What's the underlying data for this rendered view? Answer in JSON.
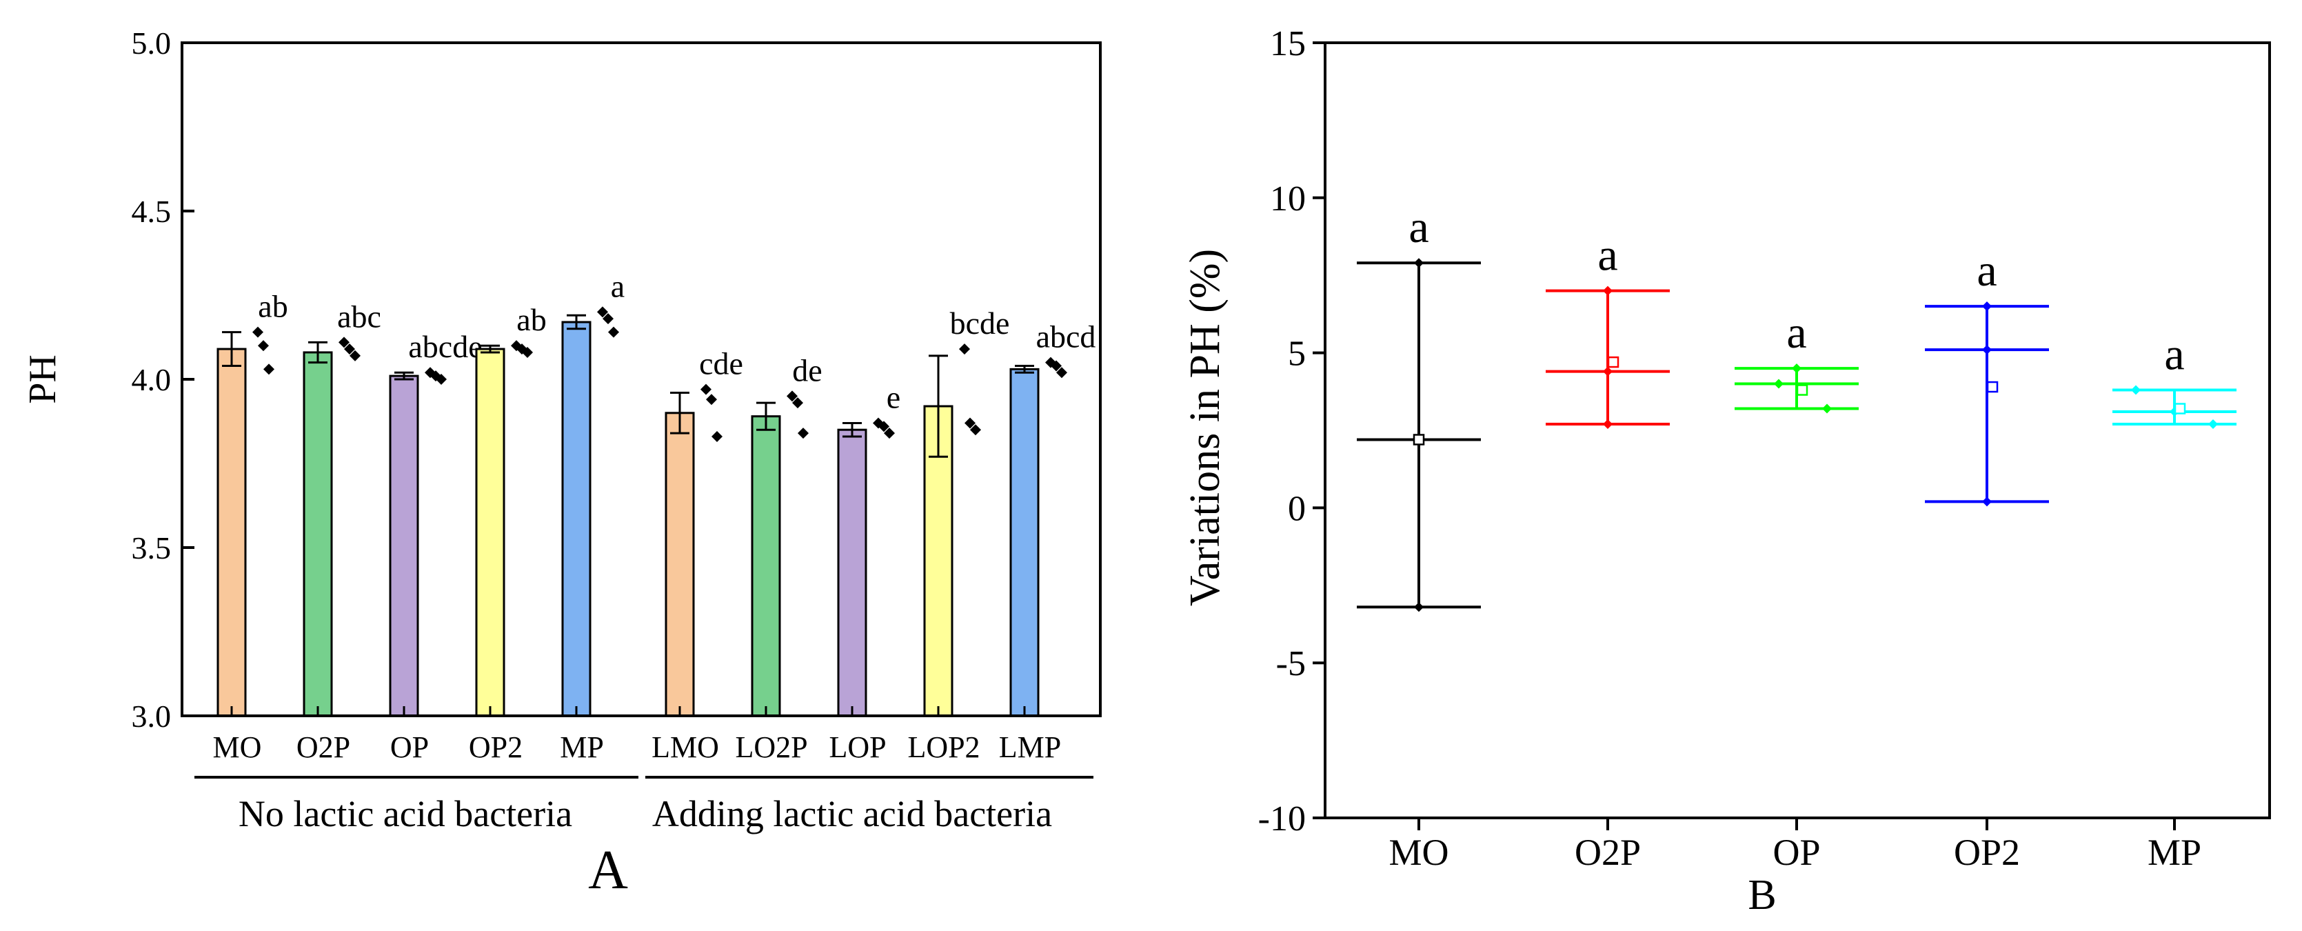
{
  "chart_data": [
    {
      "panel_label": "A",
      "type": "bar",
      "ylabel": "PH",
      "ylim": [
        3.0,
        5.0
      ],
      "yticks": [
        "3.0",
        "3.5",
        "4.0",
        "4.5",
        "5.0"
      ],
      "groups": [
        {
          "label": "No lactic acid bacteria",
          "bars": [
            {
              "category": "MO",
              "value": 4.09,
              "error": 0.05,
              "letter": "ab",
              "color": "#F9C89B",
              "points": [
                4.14,
                4.1,
                4.03
              ]
            },
            {
              "category": "O2P",
              "value": 4.08,
              "error": 0.03,
              "letter": "abc",
              "color": "#76D08D",
              "points": [
                4.11,
                4.09,
                4.07
              ]
            },
            {
              "category": "OP",
              "value": 4.01,
              "error": 0.01,
              "letter": "abcde",
              "color": "#B9A3D6",
              "points": [
                4.02,
                4.01,
                4.0
              ]
            },
            {
              "category": "OP2",
              "value": 4.09,
              "error": 0.01,
              "letter": "ab",
              "color": "#FFFF99",
              "points": [
                4.1,
                4.09,
                4.08
              ]
            },
            {
              "category": "MP",
              "value": 4.17,
              "error": 0.02,
              "letter": "a",
              "color": "#7EB2F2",
              "points": [
                4.2,
                4.18,
                4.14
              ]
            }
          ]
        },
        {
          "label": "Adding lactic acid bacteria",
          "bars": [
            {
              "category": "LMO",
              "value": 3.9,
              "error": 0.06,
              "letter": "cde",
              "color": "#F9C89B",
              "points": [
                3.97,
                3.94,
                3.83
              ]
            },
            {
              "category": "LO2P",
              "value": 3.89,
              "error": 0.04,
              "letter": "de",
              "color": "#76D08D",
              "points": [
                3.95,
                3.93,
                3.84
              ]
            },
            {
              "category": "LOP",
              "value": 3.85,
              "error": 0.02,
              "letter": "e",
              "color": "#B9A3D6",
              "points": [
                3.87,
                3.86,
                3.84
              ]
            },
            {
              "category": "LOP2",
              "value": 3.92,
              "error": 0.15,
              "letter": "bcde",
              "color": "#FFFF99",
              "points": [
                4.09,
                3.87,
                3.85
              ]
            },
            {
              "category": "LMP",
              "value": 4.03,
              "error": 0.01,
              "letter": "abcd",
              "color": "#7EB2F2",
              "points": [
                4.05,
                4.04,
                4.02
              ]
            }
          ]
        }
      ]
    },
    {
      "panel_label": "B",
      "type": "box",
      "ylabel": "Variations in PH (%)",
      "ylim": [
        -10,
        15
      ],
      "yticks": [
        "-10",
        "-5",
        "0",
        "5",
        "10",
        "15"
      ],
      "categories": [
        "MO",
        "O2P",
        "OP",
        "OP2",
        "MP"
      ],
      "series": [
        {
          "category": "MO",
          "color": "#000000",
          "max": 7.9,
          "median": 2.2,
          "min": -3.2,
          "mean": 2.2,
          "letter": "a",
          "points": [
            7.9,
            2.2,
            -3.2
          ]
        },
        {
          "category": "O2P",
          "color": "#FF0000",
          "max": 7.0,
          "median": 4.4,
          "min": 2.7,
          "mean": 4.7,
          "letter": "a",
          "points": [
            7.0,
            4.4,
            2.7
          ]
        },
        {
          "category": "OP",
          "color": "#00FF00",
          "max": 4.5,
          "median": 4.0,
          "min": 3.2,
          "mean": 3.8,
          "letter": "a",
          "points": [
            4.5,
            4.0,
            3.2
          ]
        },
        {
          "category": "OP2",
          "color": "#0000FF",
          "max": 6.5,
          "median": 5.1,
          "min": 0.2,
          "mean": 3.9,
          "letter": "a",
          "points": [
            6.5,
            5.1,
            0.2
          ]
        },
        {
          "category": "MP",
          "color": "#00FFFF",
          "max": 3.8,
          "median": 3.1,
          "min": 2.7,
          "mean": 3.2,
          "letter": "a",
          "points": [
            3.8,
            3.1,
            2.7
          ]
        }
      ]
    }
  ]
}
